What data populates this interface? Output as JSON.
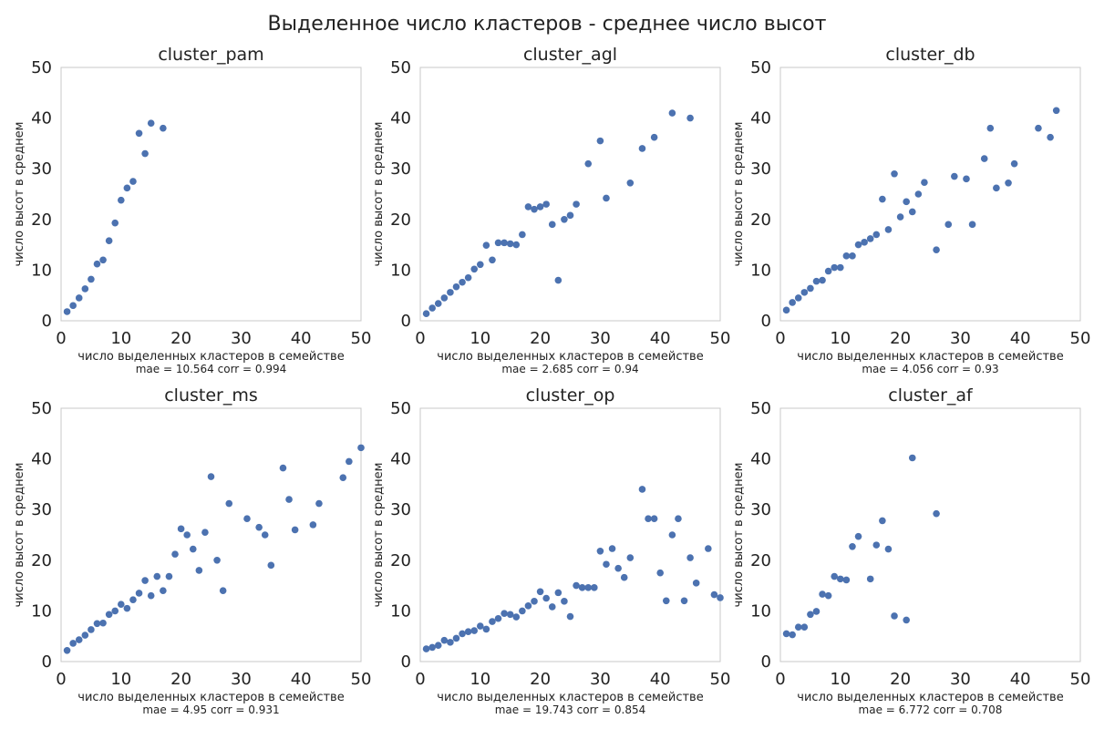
{
  "figure": {
    "title": "Выделенное число кластеров - среднее число высот"
  },
  "chart_data": [
    {
      "type": "scatter",
      "title": "cluster_pam",
      "xlabel": "число выделенных кластеров в семействе",
      "ylabel": "число высот в среднем",
      "stats": "mae = 10.564  corr = 0.994",
      "xlim": [
        0,
        50
      ],
      "ylim": [
        0,
        50
      ],
      "xticks": [
        0,
        10,
        20,
        30,
        40,
        50
      ],
      "yticks": [
        0,
        10,
        20,
        30,
        40,
        50
      ],
      "grid": false,
      "points": [
        [
          1,
          1.8
        ],
        [
          2,
          3
        ],
        [
          3,
          4.5
        ],
        [
          4,
          6.3
        ],
        [
          5,
          8.2
        ],
        [
          6,
          11.2
        ],
        [
          7,
          12
        ],
        [
          8,
          15.8
        ],
        [
          9,
          19.3
        ],
        [
          10,
          23.8
        ],
        [
          11,
          26.2
        ],
        [
          12,
          27.5
        ],
        [
          13,
          37
        ],
        [
          14,
          33
        ],
        [
          15,
          39
        ],
        [
          17,
          38
        ]
      ]
    },
    {
      "type": "scatter",
      "title": "cluster_agl",
      "xlabel": "число выделенных кластеров в семействе",
      "ylabel": "число высот в среднем",
      "stats": "mae = 2.685  corr = 0.94",
      "xlim": [
        0,
        50
      ],
      "ylim": [
        0,
        50
      ],
      "xticks": [
        0,
        10,
        20,
        30,
        40,
        50
      ],
      "yticks": [
        0,
        10,
        20,
        30,
        40,
        50
      ],
      "grid": false,
      "points": [
        [
          1,
          1.4
        ],
        [
          2,
          2.5
        ],
        [
          3,
          3.4
        ],
        [
          4,
          4.5
        ],
        [
          5,
          5.6
        ],
        [
          6,
          6.7
        ],
        [
          7,
          7.6
        ],
        [
          8,
          8.5
        ],
        [
          9,
          10.2
        ],
        [
          10,
          11.1
        ],
        [
          11,
          14.9
        ],
        [
          12,
          12
        ],
        [
          13,
          15.4
        ],
        [
          14,
          15.4
        ],
        [
          15,
          15.2
        ],
        [
          16,
          15
        ],
        [
          17,
          17
        ],
        [
          18,
          22.5
        ],
        [
          19,
          22
        ],
        [
          20,
          22.5
        ],
        [
          21,
          23
        ],
        [
          22,
          19
        ],
        [
          23,
          8
        ],
        [
          24,
          20
        ],
        [
          25,
          20.8
        ],
        [
          26,
          23
        ],
        [
          28,
          31
        ],
        [
          30,
          35.5
        ],
        [
          31,
          24.2
        ],
        [
          35,
          27.2
        ],
        [
          37,
          34
        ],
        [
          39,
          36.2
        ],
        [
          42,
          41
        ],
        [
          45,
          40
        ]
      ]
    },
    {
      "type": "scatter",
      "title": "cluster_db",
      "xlabel": "число выделенных кластеров в семействе",
      "ylabel": "число высот в среднем",
      "stats": "mae = 4.056  corr = 0.93",
      "xlim": [
        0,
        50
      ],
      "ylim": [
        0,
        50
      ],
      "xticks": [
        0,
        10,
        20,
        30,
        40,
        50
      ],
      "yticks": [
        0,
        10,
        20,
        30,
        40,
        50
      ],
      "grid": false,
      "points": [
        [
          1,
          2.1
        ],
        [
          2,
          3.6
        ],
        [
          3,
          4.5
        ],
        [
          4,
          5.6
        ],
        [
          5,
          6.4
        ],
        [
          6,
          7.8
        ],
        [
          7,
          8
        ],
        [
          8,
          9.8
        ],
        [
          9,
          10.5
        ],
        [
          10,
          10.5
        ],
        [
          11,
          12.8
        ],
        [
          12,
          12.8
        ],
        [
          13,
          15
        ],
        [
          14,
          15.5
        ],
        [
          15,
          16.2
        ],
        [
          16,
          17
        ],
        [
          17,
          24
        ],
        [
          18,
          18
        ],
        [
          19,
          29
        ],
        [
          20,
          20.5
        ],
        [
          21,
          23.5
        ],
        [
          22,
          21.5
        ],
        [
          23,
          25
        ],
        [
          24,
          27.3
        ],
        [
          26,
          14
        ],
        [
          28,
          19
        ],
        [
          29,
          28.5
        ],
        [
          31,
          28
        ],
        [
          32,
          19
        ],
        [
          34,
          32
        ],
        [
          35,
          38
        ],
        [
          36,
          26.2
        ],
        [
          38,
          27.2
        ],
        [
          39,
          31
        ],
        [
          43,
          38
        ],
        [
          45,
          36.2
        ],
        [
          46,
          41.5
        ]
      ]
    },
    {
      "type": "scatter",
      "title": "cluster_ms",
      "xlabel": "число выделенных кластеров в семействе",
      "ylabel": "число высот в среднем",
      "stats": "mae = 4.95  corr = 0.931",
      "xlim": [
        0,
        50
      ],
      "ylim": [
        0,
        50
      ],
      "xticks": [
        0,
        10,
        20,
        30,
        40,
        50
      ],
      "yticks": [
        0,
        10,
        20,
        30,
        40,
        50
      ],
      "grid": false,
      "points": [
        [
          1,
          2.2
        ],
        [
          2,
          3.6
        ],
        [
          3,
          4.3
        ],
        [
          4,
          5.2
        ],
        [
          5,
          6.3
        ],
        [
          6,
          7.5
        ],
        [
          7,
          7.6
        ],
        [
          8,
          9.3
        ],
        [
          9,
          10
        ],
        [
          10,
          11.3
        ],
        [
          11,
          10.5
        ],
        [
          12,
          12.2
        ],
        [
          13,
          13.5
        ],
        [
          14,
          16
        ],
        [
          15,
          13
        ],
        [
          16,
          16.8
        ],
        [
          17,
          14
        ],
        [
          18,
          16.8
        ],
        [
          19,
          21.2
        ],
        [
          20,
          26.2
        ],
        [
          21,
          25
        ],
        [
          22,
          22.2
        ],
        [
          23,
          18
        ],
        [
          24,
          25.5
        ],
        [
          25,
          36.5
        ],
        [
          26,
          20
        ],
        [
          27,
          14
        ],
        [
          28,
          31.2
        ],
        [
          31,
          28.2
        ],
        [
          33,
          26.5
        ],
        [
          34,
          25
        ],
        [
          35,
          19
        ],
        [
          37,
          38.2
        ],
        [
          38,
          32
        ],
        [
          39,
          26
        ],
        [
          42,
          27
        ],
        [
          43,
          31.2
        ],
        [
          47,
          36.3
        ],
        [
          48,
          39.5
        ],
        [
          50,
          42.2
        ]
      ]
    },
    {
      "type": "scatter",
      "title": "cluster_op",
      "xlabel": "число выделенных кластеров в семействе",
      "ylabel": "число высот в среднем",
      "stats": "mae = 19.743  corr = 0.854",
      "xlim": [
        0,
        50
      ],
      "ylim": [
        0,
        50
      ],
      "xticks": [
        0,
        10,
        20,
        30,
        40,
        50
      ],
      "yticks": [
        0,
        10,
        20,
        30,
        40,
        50
      ],
      "grid": false,
      "points": [
        [
          1,
          2.5
        ],
        [
          2,
          2.8
        ],
        [
          3,
          3.2
        ],
        [
          4,
          4.2
        ],
        [
          5,
          3.8
        ],
        [
          6,
          4.6
        ],
        [
          7,
          5.5
        ],
        [
          8,
          5.9
        ],
        [
          9,
          6.1
        ],
        [
          10,
          7
        ],
        [
          11,
          6.4
        ],
        [
          12,
          7.9
        ],
        [
          13,
          8.5
        ],
        [
          14,
          9.5
        ],
        [
          15,
          9.3
        ],
        [
          16,
          8.8
        ],
        [
          17,
          10
        ],
        [
          18,
          11
        ],
        [
          19,
          11.9
        ],
        [
          20,
          13.8
        ],
        [
          21,
          12.5
        ],
        [
          22,
          10.8
        ],
        [
          23,
          13.6
        ],
        [
          24,
          11.9
        ],
        [
          25,
          8.9
        ],
        [
          26,
          15
        ],
        [
          27,
          14.6
        ],
        [
          28,
          14.6
        ],
        [
          29,
          14.6
        ],
        [
          30,
          21.8
        ],
        [
          31,
          19.2
        ],
        [
          32,
          22.3
        ],
        [
          33,
          18.4
        ],
        [
          34,
          16.6
        ],
        [
          35,
          20.5
        ],
        [
          37,
          34
        ],
        [
          38,
          28.2
        ],
        [
          39,
          28.2
        ],
        [
          40,
          17.5
        ],
        [
          41,
          12
        ],
        [
          42,
          25
        ],
        [
          43,
          28.2
        ],
        [
          44,
          12
        ],
        [
          45,
          20.5
        ],
        [
          46,
          15.5
        ],
        [
          48,
          22.3
        ],
        [
          49,
          13.2
        ],
        [
          50,
          12.6
        ]
      ]
    },
    {
      "type": "scatter",
      "title": "cluster_af",
      "xlabel": "число выделенных кластеров в семействе",
      "ylabel": "число высот в среднем",
      "stats": "mae = 6.772  corr = 0.708",
      "xlim": [
        0,
        50
      ],
      "ylim": [
        0,
        50
      ],
      "xticks": [
        0,
        10,
        20,
        30,
        40,
        50
      ],
      "yticks": [
        0,
        10,
        20,
        30,
        40,
        50
      ],
      "grid": false,
      "points": [
        [
          1,
          5.5
        ],
        [
          2,
          5.3
        ],
        [
          3,
          6.8
        ],
        [
          4,
          6.8
        ],
        [
          5,
          9.3
        ],
        [
          6,
          9.9
        ],
        [
          7,
          13.3
        ],
        [
          8,
          13
        ],
        [
          9,
          16.8
        ],
        [
          10,
          16.3
        ],
        [
          11,
          16.1
        ],
        [
          12,
          22.7
        ],
        [
          13,
          24.7
        ],
        [
          15,
          16.3
        ],
        [
          16,
          23
        ],
        [
          17,
          27.8
        ],
        [
          18,
          22.2
        ],
        [
          19,
          9
        ],
        [
          21,
          8.2
        ],
        [
          22,
          40.2
        ],
        [
          26,
          29.2
        ]
      ]
    }
  ],
  "colors": {
    "marker": "#4c72b0",
    "frame": "#c8c8c8",
    "background": "#ffffff"
  }
}
